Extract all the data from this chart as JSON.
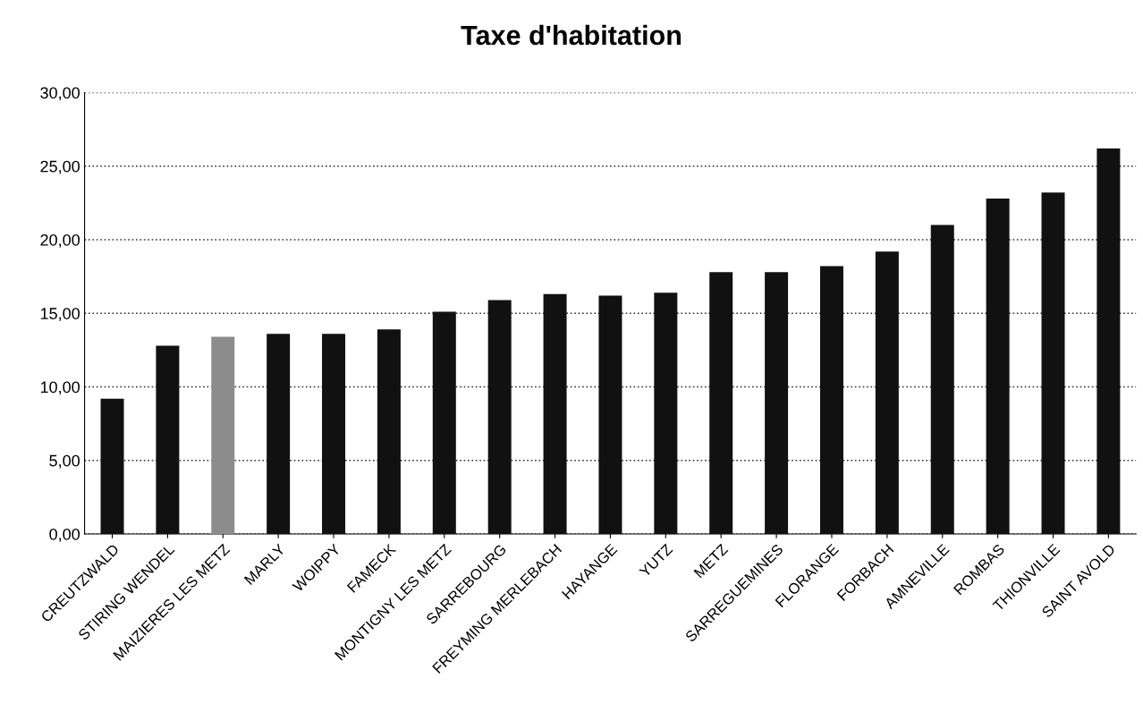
{
  "chart_data": {
    "type": "bar",
    "title": "Taxe d'habitation",
    "categories": [
      "CREUTZWALD",
      "STIRING WENDEL",
      "MAIZIERES LES METZ",
      "MARLY",
      "WOIPPY",
      "FAMECK",
      "MONTIGNY LES METZ",
      "SARREBOURG",
      "FREYMING MERLEBACH",
      "HAYANGE",
      "YUTZ",
      "METZ",
      "SARREGUEMINES",
      "FLORANGE",
      "FORBACH",
      "AMNEVILLE",
      "ROMBAS",
      "THIONVILLE",
      "SAINT AVOLD"
    ],
    "values": [
      9.2,
      12.8,
      13.4,
      13.6,
      13.6,
      13.9,
      15.1,
      15.9,
      16.3,
      16.2,
      16.4,
      17.8,
      17.8,
      18.2,
      19.2,
      21.0,
      22.8,
      23.2,
      26.2
    ],
    "colors": [
      "#111111",
      "#111111",
      "#8c8c8c",
      "#111111",
      "#111111",
      "#111111",
      "#111111",
      "#111111",
      "#111111",
      "#111111",
      "#111111",
      "#111111",
      "#111111",
      "#111111",
      "#111111",
      "#111111",
      "#111111",
      "#111111",
      "#111111"
    ],
    "ylim": [
      0,
      30
    ],
    "yticks": [
      {
        "value": 0,
        "label": "0,00"
      },
      {
        "value": 5,
        "label": "5,00"
      },
      {
        "value": 10,
        "label": "10,00"
      },
      {
        "value": 15,
        "label": "15,00"
      },
      {
        "value": 20,
        "label": "20,00"
      },
      {
        "value": 25,
        "label": "25,00"
      },
      {
        "value": 30,
        "label": "30,00"
      }
    ],
    "grid": "y",
    "legend": false
  }
}
